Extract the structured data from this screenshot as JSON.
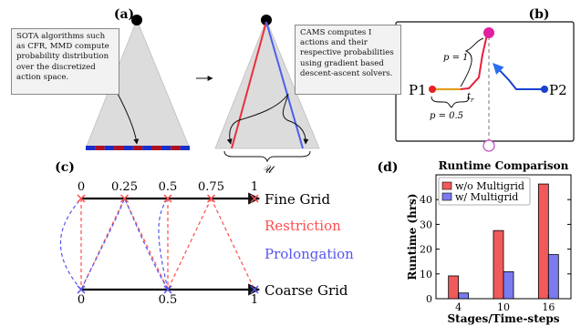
{
  "panels": {
    "a": {
      "label": "(a)",
      "note_left": "SOTA algorithms such as CFR, MMD compute probability distribution over the discretized action space.",
      "note_right": "CAMS computes I actions and their respective probabilities using gradient based descent-ascent solvers.",
      "brace_label": "𝒰",
      "colors": {
        "tree": "#d9d9d9",
        "red": "#e8303a",
        "blue": "#4a5ff0",
        "bar_blue": "#1a2fcc",
        "bar_red": "#b01020"
      }
    },
    "b": {
      "label": "(b)",
      "p1": "P1",
      "p2": "P2",
      "p_one": "p = 1",
      "p_half": "p = 0.5",
      "t_label": "t",
      "t_sub": "r"
    },
    "c": {
      "label": "(c)",
      "fine_ticks": [
        "0",
        "0.25",
        "0.5",
        "0.75",
        "1"
      ],
      "coarse_ticks": [
        "0",
        "0.5",
        "1"
      ],
      "fine_label": "Fine Grid",
      "coarse_label": "Coarse Grid",
      "restriction_label": "Restriction",
      "prolongation_label": "Prolongation",
      "colors": {
        "restriction": "#ff4d4d",
        "prolongation": "#5555ee"
      }
    },
    "d": {
      "label": "(d)"
    }
  },
  "chart_data": {
    "type": "bar",
    "title": "Runtime Comparison",
    "xlabel": "Stages/Time-steps",
    "ylabel": "Runtime (hrs)",
    "categories": [
      "4",
      "10",
      "16"
    ],
    "ylim": [
      0,
      50
    ],
    "yticks": [
      0,
      10,
      20,
      30,
      40
    ],
    "legend_position": "top-left",
    "series": [
      {
        "name": "w/o Multigrid",
        "color": "#f05a5a",
        "values": [
          9.2,
          27.5,
          46.3
        ]
      },
      {
        "name": "w/ Multigrid",
        "color": "#7b7bf0",
        "values": [
          2.3,
          10.9,
          17.8
        ]
      }
    ]
  }
}
